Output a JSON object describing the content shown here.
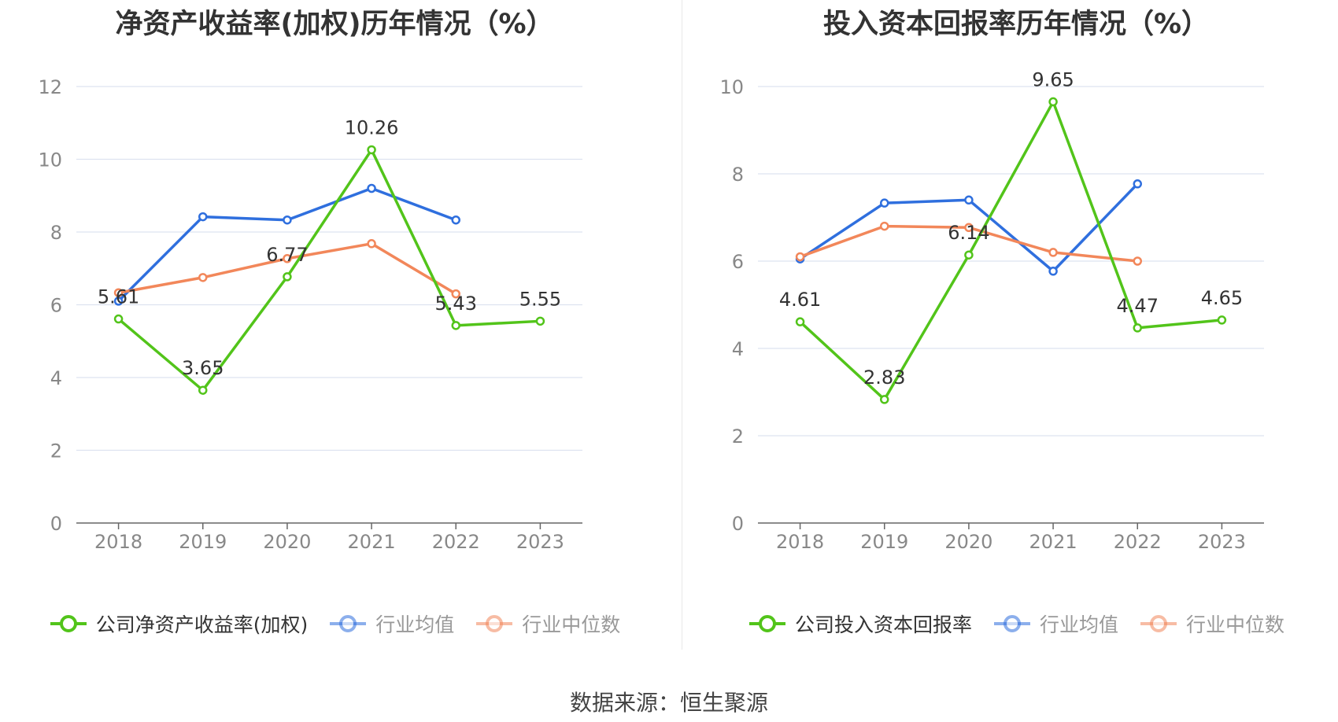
{
  "colors": {
    "company": "#52c41a",
    "average": "#2f6fde",
    "median": "#f2875a",
    "grid": "#dde3f0",
    "axis": "#666666",
    "tick_text": "#888888"
  },
  "source": "数据来源：恒生聚源",
  "chart_data": [
    {
      "type": "line",
      "title": "净资产收益率(加权)历年情况（%）",
      "categories": [
        "2018",
        "2019",
        "2020",
        "2021",
        "2022",
        "2023"
      ],
      "ylim": [
        0,
        12
      ],
      "yticks": [
        0,
        2,
        4,
        6,
        8,
        10,
        12
      ],
      "series": [
        {
          "name": "公司净资产收益率(加权)",
          "key": "company",
          "values": [
            5.61,
            3.65,
            6.77,
            10.26,
            5.43,
            5.55
          ],
          "labels": [
            "5.61",
            "3.65",
            "6.77",
            "10.26",
            "5.43",
            "5.55"
          ],
          "active": true
        },
        {
          "name": "行业均值",
          "key": "average",
          "values": [
            6.1,
            8.42,
            8.33,
            9.2,
            8.33,
            null
          ],
          "active": false
        },
        {
          "name": "行业中位数",
          "key": "median",
          "values": [
            6.33,
            6.75,
            7.27,
            7.68,
            6.3,
            null
          ],
          "active": false
        }
      ]
    },
    {
      "type": "line",
      "title": "投入资本回报率历年情况（%）",
      "categories": [
        "2018",
        "2019",
        "2020",
        "2021",
        "2022",
        "2023"
      ],
      "ylim": [
        0,
        10
      ],
      "yticks": [
        0,
        2,
        4,
        6,
        8,
        10
      ],
      "series": [
        {
          "name": "公司投入资本回报率",
          "key": "company",
          "values": [
            4.61,
            2.83,
            6.14,
            9.65,
            4.47,
            4.65
          ],
          "labels": [
            "4.61",
            "2.83",
            "6.14",
            "9.65",
            "4.47",
            "4.65"
          ],
          "active": true
        },
        {
          "name": "行业均值",
          "key": "average",
          "values": [
            6.05,
            7.33,
            7.4,
            5.77,
            7.77,
            null
          ],
          "active": false
        },
        {
          "name": "行业中位数",
          "key": "median",
          "values": [
            6.1,
            6.8,
            6.77,
            6.2,
            6.0,
            null
          ],
          "active": false
        }
      ]
    }
  ]
}
